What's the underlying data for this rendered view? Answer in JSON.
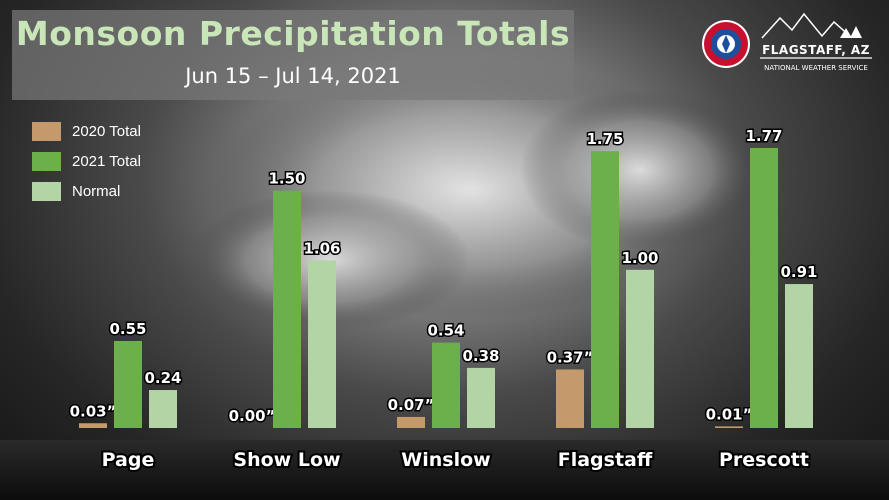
{
  "title": "Monsoon Precipitation Totals",
  "subtitle": "Jun 15 – Jul 14, 2021",
  "logo": {
    "seal_icon": "nws-seal-icon",
    "seal_text": "NATIONAL WEATHER SERVICE",
    "mountains_icon": "mountains-icon",
    "office_name": "FLAGSTAFF, AZ",
    "office_sub": "NATIONAL WEATHER SERVICE"
  },
  "colors": {
    "2020": "#c49a6c",
    "2021": "#6bb04b",
    "normal": "#b3d4a4",
    "title": "#c9e6b8"
  },
  "chart_data": {
    "type": "bar",
    "title": "Monsoon Precipitation Totals",
    "subtitle": "Jun 15 – Jul 14, 2021",
    "xlabel": "",
    "ylabel": "",
    "ylim": [
      0,
      1.9
    ],
    "grid": false,
    "legend": "top-left",
    "categories": [
      "Page",
      "Show Low",
      "Winslow",
      "Flagstaff",
      "Prescott"
    ],
    "series": [
      {
        "name": "2020 Total",
        "color": "#c49a6c",
        "values": [
          0.03,
          0.0,
          0.07,
          0.37,
          0.01
        ],
        "labels": [
          "0.03”",
          "0.00”",
          "0.07”",
          "0.37”",
          "0.01”"
        ]
      },
      {
        "name": "2021 Total",
        "color": "#6bb04b",
        "values": [
          0.55,
          1.5,
          0.54,
          1.75,
          1.77
        ],
        "labels": [
          "0.55",
          "1.50",
          "0.54",
          "1.75",
          "1.77"
        ]
      },
      {
        "name": "Normal",
        "color": "#b3d4a4",
        "values": [
          0.24,
          1.06,
          0.38,
          1.0,
          0.91
        ],
        "labels": [
          "0.24",
          "1.06",
          "0.38",
          "1.00",
          "0.91"
        ]
      }
    ]
  }
}
